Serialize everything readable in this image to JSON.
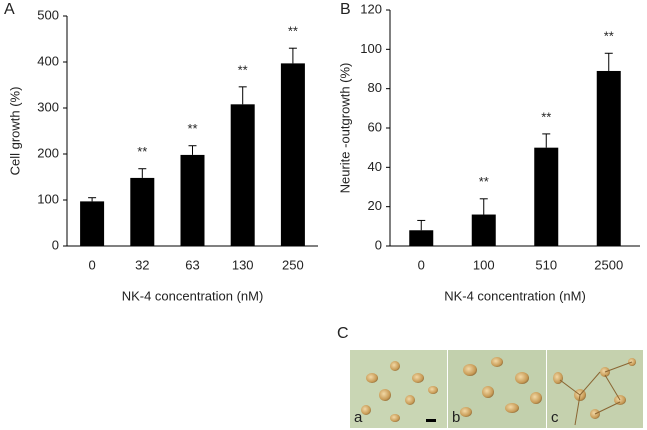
{
  "chart_data": [
    {
      "type": "bar",
      "panel": "A",
      "ylabel": "Cell growth (%)",
      "xlabel": "NK-4 concentration (nM)",
      "categories": [
        "0",
        "32",
        "63",
        "130",
        "250"
      ],
      "values": [
        97,
        148,
        198,
        308,
        397
      ],
      "errors": [
        8,
        20,
        20,
        38,
        33
      ],
      "annotations": [
        null,
        "**",
        "**",
        "**",
        "**"
      ],
      "color": "#000000",
      "ylim": [
        0,
        500
      ],
      "yticks": [
        0,
        100,
        200,
        300,
        400,
        500
      ]
    },
    {
      "type": "bar",
      "panel": "B",
      "ylabel": "Neurite -outgrowth (%)",
      "xlabel": "NK-4 concentration (nM)",
      "categories": [
        "0",
        "100",
        "510",
        "2500"
      ],
      "values": [
        8,
        16,
        50,
        89
      ],
      "errors": [
        5,
        8,
        7,
        9
      ],
      "annotations": [
        null,
        "**",
        "**",
        "**"
      ],
      "color": "#000000",
      "ylim": [
        0,
        120
      ],
      "yticks": [
        0,
        20,
        40,
        60,
        80,
        100,
        120
      ]
    }
  ],
  "panel_c": {
    "label": "C",
    "images": [
      "a",
      "b",
      "c"
    ]
  }
}
